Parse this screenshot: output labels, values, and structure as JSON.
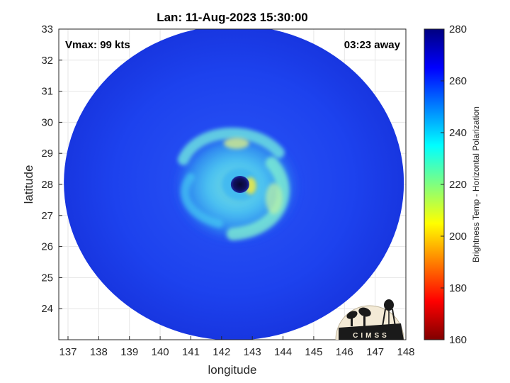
{
  "title": "Lan: 11-Aug-2023 15:30:00",
  "vmax_text": "Vmax: 99 kts",
  "away_text": "03:23 away",
  "logo_text": "CIMSS",
  "chart_data": {
    "type": "heatmap",
    "title": "Lan: 11-Aug-2023 15:30:00",
    "xlabel": "longitude",
    "ylabel": "latitude",
    "xlim": [
      136.7,
      148
    ],
    "ylim": [
      23,
      33
    ],
    "xticks": [
      137,
      138,
      139,
      140,
      141,
      142,
      143,
      144,
      145,
      146,
      147,
      148
    ],
    "yticks": [
      24,
      25,
      26,
      27,
      28,
      29,
      30,
      31,
      32,
      33
    ],
    "grid": true,
    "swath_center": [
      142.4,
      28.05
    ],
    "eye_center": [
      142.6,
      28.0
    ],
    "colorbar": {
      "label": "Brightness Temp - Horizontal Polarization",
      "range": [
        160,
        280
      ],
      "ticks": [
        160,
        180,
        200,
        220,
        240,
        260,
        280
      ],
      "colormap": "jet",
      "placement": "right"
    }
  },
  "colors": {
    "background_field": "#1a3be8",
    "outer_field": "#1f44f0",
    "band_cyan": "#4fd6f2",
    "band_light": "#7ff0d8",
    "eyewall_yellow": "#e8e84a",
    "eye_dark": "#0b0b4a",
    "logo_bg": "#f3ead6",
    "logo_dark": "#1a1a1a"
  }
}
